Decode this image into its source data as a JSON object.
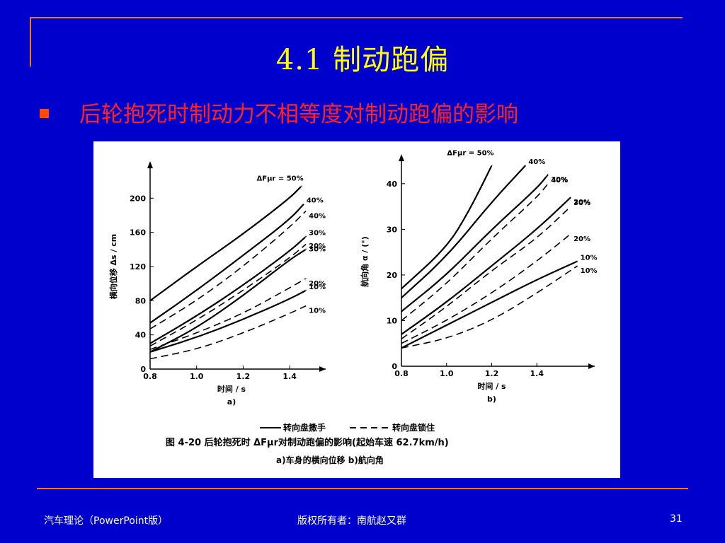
{
  "slide": {
    "title": "4.1  制动跑偏",
    "bullet": "后轮抱死时制动力不相等度对制动跑偏的影响"
  },
  "footer": {
    "left": "汽车理论（PowerPoint版）",
    "center": "版权所有者：南航赵又群",
    "page": "31"
  },
  "colors": {
    "background": "#0000cc",
    "title": "#ffff00",
    "bullet": "#ff2222",
    "rule": "#f07a1a"
  },
  "figure": {
    "caption": "图 4-20    后轮抱死时 ΔFμr对制动跑偏的影响(起始车速 62.7km/h)",
    "caption_sub": "a)车身的横向位移    b)航向角",
    "legend_solid": "转向盘撒手",
    "legend_dashed": "转向盘锁住"
  },
  "chart_data": [
    {
      "type": "line",
      "sublabel": "a)",
      "xlabel": "时间 / s",
      "ylabel": "横向位移 Δs / cm",
      "xlim": [
        0.8,
        1.5
      ],
      "ylim": [
        0,
        230
      ],
      "xticks": [
        "0.8",
        "1.0",
        "1.2",
        "1.4"
      ],
      "yticks": [
        "0",
        "40",
        "80",
        "120",
        "160",
        "200"
      ],
      "series_title": "ΔFμr = 50%",
      "series": [
        {
          "label": "50%",
          "style": "solid",
          "x": [
            0.8,
            1.0,
            1.2,
            1.4,
            1.45
          ],
          "y": [
            80,
            120,
            158,
            200,
            214
          ]
        },
        {
          "label": "40%",
          "style": "solid",
          "x": [
            0.8,
            1.0,
            1.2,
            1.4,
            1.46
          ],
          "y": [
            54,
            92,
            133,
            175,
            193
          ]
        },
        {
          "label": "40%",
          "style": "dashed",
          "x": [
            0.8,
            1.0,
            1.2,
            1.4,
            1.47
          ],
          "y": [
            47,
            80,
            120,
            166,
            185
          ]
        },
        {
          "label": "30%",
          "style": "solid",
          "x": [
            0.8,
            1.0,
            1.2,
            1.4,
            1.47
          ],
          "y": [
            30,
            62,
            98,
            138,
            155
          ]
        },
        {
          "label": "30%",
          "style": "dashed",
          "x": [
            0.8,
            1.0,
            1.2,
            1.4,
            1.47
          ],
          "y": [
            27,
            57,
            92,
            130,
            146
          ]
        },
        {
          "label": "20%",
          "style": "solid",
          "x": [
            0.8,
            1.0,
            1.2,
            1.4,
            1.47
          ],
          "y": [
            20,
            48,
            86,
            128,
            140
          ]
        },
        {
          "label": "20%",
          "style": "dashed",
          "x": [
            0.8,
            1.0,
            1.2,
            1.4,
            1.47
          ],
          "y": [
            23,
            42,
            65,
            95,
            106
          ]
        },
        {
          "label": "10%",
          "style": "solid",
          "x": [
            0.8,
            1.0,
            1.2,
            1.4,
            1.47
          ],
          "y": [
            20,
            37,
            58,
            82,
            92
          ]
        },
        {
          "label": "10%",
          "style": "dashed",
          "x": [
            0.8,
            1.0,
            1.2,
            1.4,
            1.47
          ],
          "y": [
            12,
            23,
            42,
            65,
            74
          ]
        }
      ]
    },
    {
      "type": "line",
      "sublabel": "b)",
      "xlabel": "时间 / s",
      "ylabel": "航向角 α / (°)",
      "xlim": [
        0.8,
        1.6
      ],
      "ylim": [
        0,
        44
      ],
      "xticks": [
        "0.8",
        "1.0",
        "1.2",
        "1.4"
      ],
      "yticks": [
        "0",
        "10",
        "20",
        "30",
        "40"
      ],
      "series_title": "ΔFμr = 50%",
      "series": [
        {
          "label": "50%",
          "style": "solid",
          "x": [
            0.8,
            1.0,
            1.1,
            1.2
          ],
          "y": [
            17,
            26,
            34,
            45
          ]
        },
        {
          "label": "40%",
          "style": "solid",
          "x": [
            0.8,
            1.0,
            1.2,
            1.35
          ],
          "y": [
            15,
            24,
            36,
            45
          ]
        },
        {
          "label": "30%",
          "style": "solid",
          "x": [
            0.8,
            1.0,
            1.2,
            1.4,
            1.45
          ],
          "y": [
            12,
            20,
            30,
            39,
            42
          ]
        },
        {
          "label": "40%",
          "style": "dashed",
          "x": [
            0.8,
            1.0,
            1.2,
            1.4,
            1.45
          ],
          "y": [
            10,
            18,
            28,
            37,
            40
          ]
        },
        {
          "label": "20%",
          "style": "solid",
          "x": [
            0.8,
            1.0,
            1.2,
            1.4,
            1.55
          ],
          "y": [
            7,
            14,
            22,
            30,
            37
          ]
        },
        {
          "label": "30%",
          "style": "dashed",
          "x": [
            0.8,
            1.0,
            1.2,
            1.4,
            1.55
          ],
          "y": [
            6,
            13,
            21,
            28,
            35
          ]
        },
        {
          "label": "20%",
          "style": "dashed",
          "x": [
            0.8,
            1.0,
            1.2,
            1.4,
            1.55
          ],
          "y": [
            5,
            10,
            16,
            23,
            29
          ]
        },
        {
          "label": "10%",
          "style": "solid",
          "x": [
            0.8,
            1.0,
            1.2,
            1.4,
            1.58
          ],
          "y": [
            4,
            9,
            14,
            19,
            23
          ]
        },
        {
          "label": "10%",
          "style": "dashed",
          "x": [
            0.8,
            1.0,
            1.2,
            1.4,
            1.58
          ],
          "y": [
            4,
            6,
            10,
            16,
            22
          ]
        }
      ]
    }
  ]
}
